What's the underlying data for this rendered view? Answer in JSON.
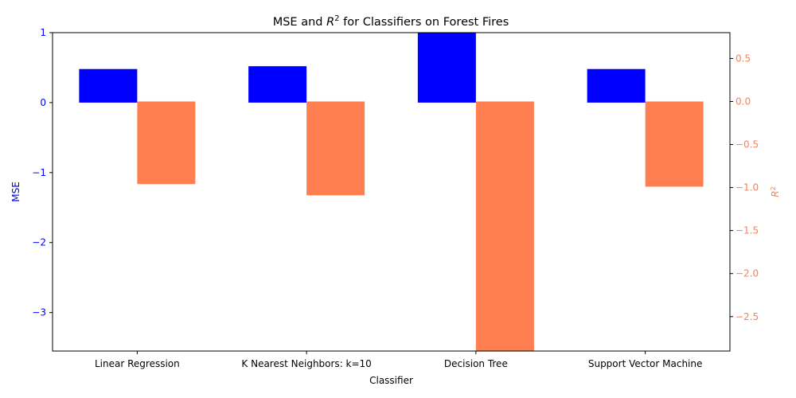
{
  "chart_data": {
    "type": "bar",
    "title": "MSE and R² for Classifiers on Forest Fires",
    "title_parts": {
      "prefix": "MSE and ",
      "var": "R",
      "sup": "2",
      "suffix": " for Classifiers on Forest Fires"
    },
    "xlabel": "Classifier",
    "categories": [
      "Linear Regression",
      "K Nearest Neighbors: k=10",
      "Decision Tree",
      "Support Vector Machine"
    ],
    "left_axis": {
      "label": "MSE",
      "color": "#0000ff",
      "ylim": [
        -3.55,
        1.0
      ],
      "ticks": [
        1,
        0,
        -1,
        -2,
        -3
      ],
      "tick_labels": [
        "1",
        "0",
        "−1",
        "−2",
        "−3"
      ]
    },
    "right_axis": {
      "label": "R²",
      "label_parts": {
        "var": "R",
        "sup": "2"
      },
      "color": "#ff7f50",
      "ylim": [
        -2.9,
        0.8
      ],
      "ticks": [
        0.5,
        0.0,
        -0.5,
        -1.0,
        -1.5,
        -2.0,
        -2.5
      ],
      "tick_labels": [
        "0.5",
        "0.0",
        "−0.5",
        "−1.0",
        "−1.5",
        "−2.0",
        "−2.5"
      ]
    },
    "series": [
      {
        "axis": "left",
        "color": "#0000ff",
        "values": [
          0.48,
          0.52,
          1.0,
          0.48
        ]
      },
      {
        "axis": "right",
        "color": "#ff7f50",
        "values": [
          -0.96,
          -1.09,
          -2.9,
          -0.99
        ]
      }
    ],
    "grid": false,
    "legend": "none"
  }
}
